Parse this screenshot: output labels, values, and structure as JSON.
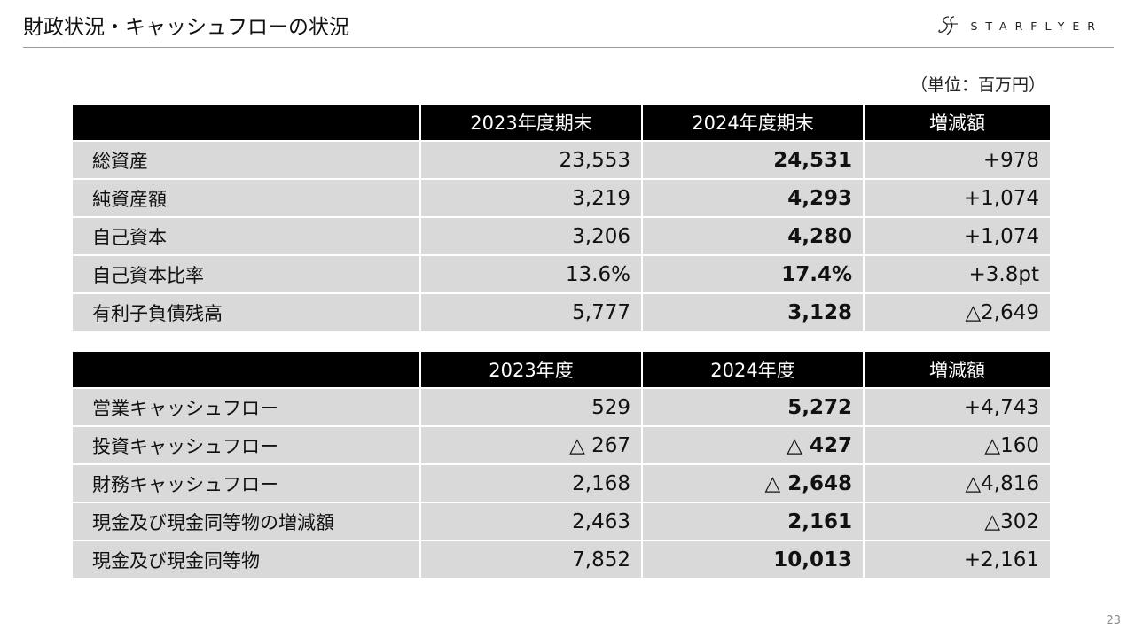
{
  "slide": {
    "title": "財政状況・キャッシュフローの状況",
    "logo_text": "STARFLYER",
    "unit": "（単位：百万円）",
    "page_number": "23"
  },
  "balance_table": {
    "headers": [
      "",
      "2023年度期末",
      "2024年度期末",
      "増減額"
    ],
    "rows": [
      {
        "label": "総資産",
        "v2023": "23,553",
        "v2024": "24,531",
        "change": "+978"
      },
      {
        "label": "純資産額",
        "v2023": "3,219",
        "v2024": "4,293",
        "change": "+1,074"
      },
      {
        "label": "自己資本",
        "v2023": "3,206",
        "v2024": "4,280",
        "change": "+1,074"
      },
      {
        "label": "自己資本比率",
        "v2023": "13.6%",
        "v2024": "17.4%",
        "change": "+3.8pt"
      },
      {
        "label": "有利子負債残高",
        "v2023": "5,777",
        "v2024": "3,128",
        "change": "△2,649"
      }
    ]
  },
  "cashflow_table": {
    "headers": [
      "",
      "2023年度",
      "2024年度",
      "増減額"
    ],
    "rows": [
      {
        "label": "営業キャッシュフロー",
        "v2023": "529",
        "v2024": "5,272",
        "change": "+4,743"
      },
      {
        "label": "投資キャッシュフロー",
        "v2023": "△ 267",
        "v2024": "△ 427",
        "change": "△160"
      },
      {
        "label": "財務キャッシュフロー",
        "v2023": "2,168",
        "v2024": "△ 2,648",
        "change": "△4,816"
      },
      {
        "label": "現金及び現金同等物の増減額",
        "v2023": "2,463",
        "v2024": "2,161",
        "change": "△302"
      },
      {
        "label": "現金及び現金同等物",
        "v2023": "7,852",
        "v2024": "10,013",
        "change": "+2,161"
      }
    ]
  },
  "colors": {
    "header_bg": "#000000",
    "cell_bg": "#d9d9d9",
    "rule": "#9a9a9a"
  }
}
